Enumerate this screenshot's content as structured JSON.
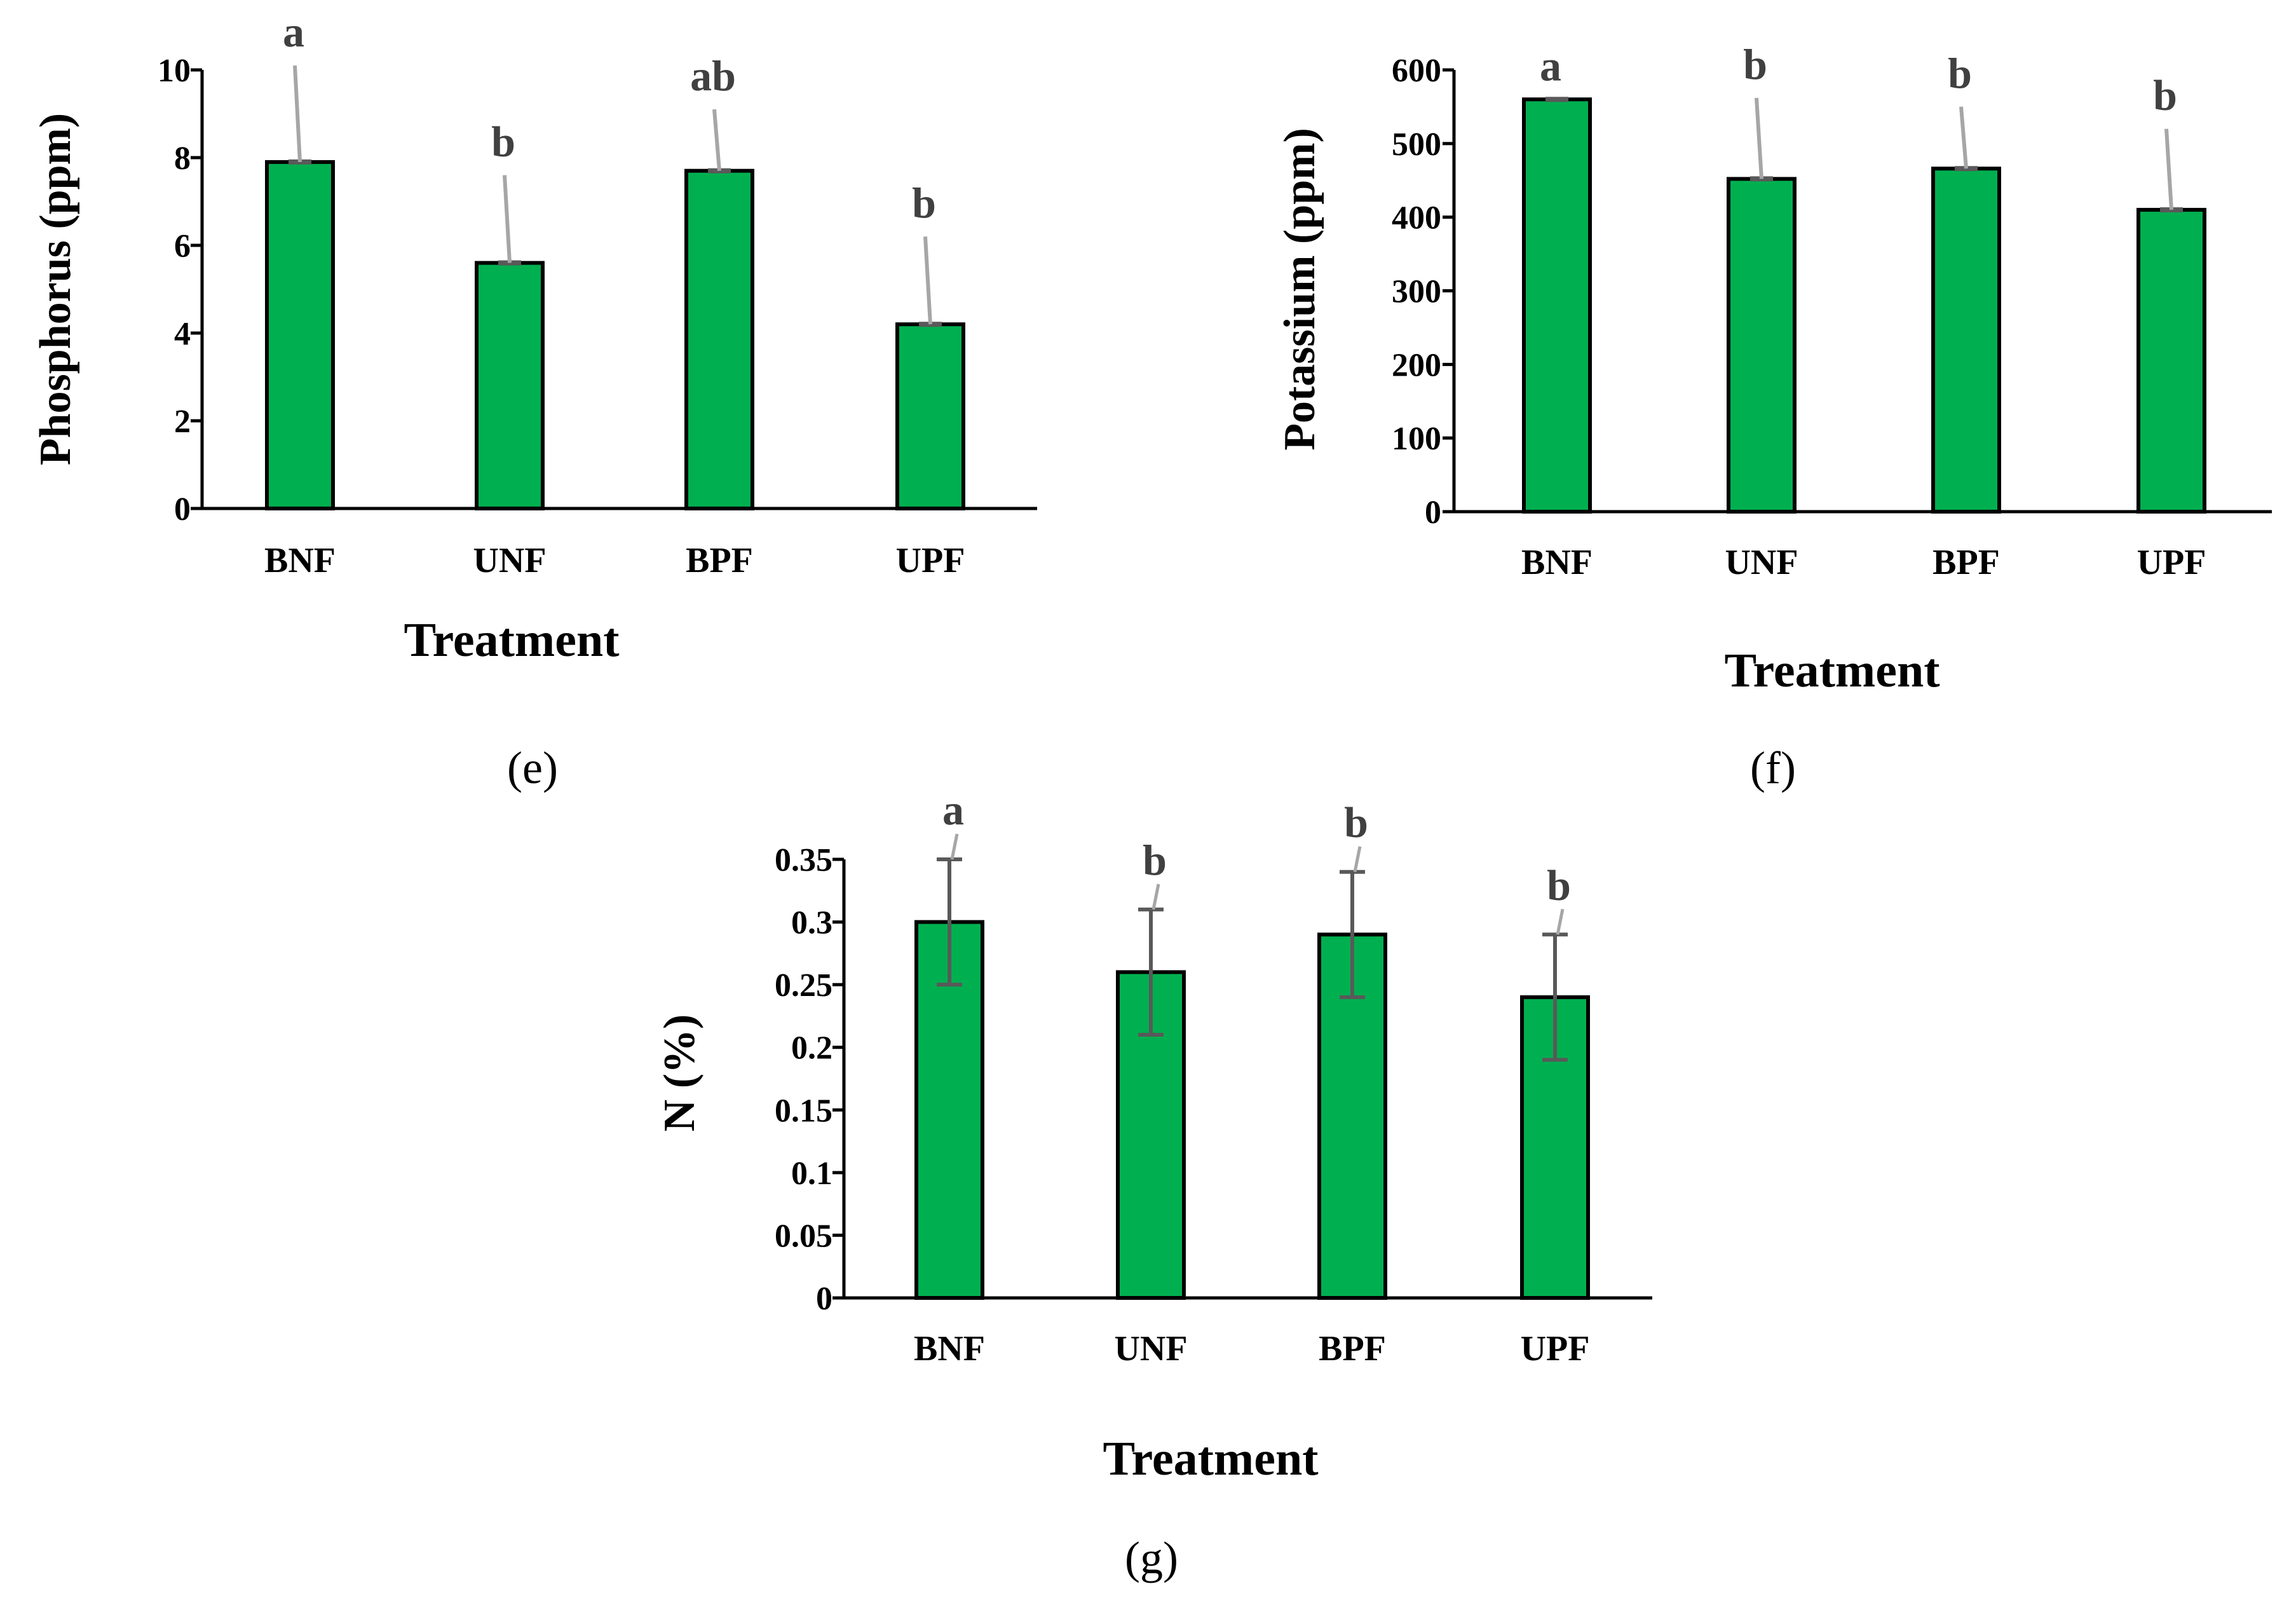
{
  "colors": {
    "bar_fill": "#00b050",
    "error_bar_light": "#a6a6a6",
    "error_bar_dark": "#595959",
    "letter": "#404040"
  },
  "chart_data": [
    {
      "type": "bar",
      "panel_label": "(e)",
      "categories": [
        "BNF",
        "UNF",
        "BPF",
        "UPF"
      ],
      "values": [
        7.9,
        5.6,
        7.7,
        4.2
      ],
      "errors": [
        2.2,
        2.0,
        1.4,
        2.0
      ],
      "letters": [
        "a",
        "b",
        "ab",
        "b"
      ],
      "ylabel": "Phosphorus (ppm)",
      "xlabel": "Treatment",
      "ylim": [
        0,
        10
      ],
      "yticks": [
        "0",
        "2",
        "4",
        "6",
        "8",
        "10"
      ],
      "ytick_values": [
        0,
        2,
        4,
        6,
        8,
        10
      ]
    },
    {
      "type": "bar",
      "panel_label": "(f)",
      "categories": [
        "BNF",
        "UNF",
        "BPF",
        "UPF"
      ],
      "values": [
        560,
        452,
        466,
        410
      ],
      "errors": [
        0,
        110,
        84,
        110
      ],
      "letters": [
        "a",
        "b",
        "b",
        "b"
      ],
      "ylabel": "Potassium (ppm)",
      "xlabel": "Treatment",
      "ylim": [
        0,
        600
      ],
      "yticks": [
        "0",
        "100",
        "200",
        "300",
        "400",
        "500",
        "600"
      ],
      "ytick_values": [
        0,
        100,
        200,
        300,
        400,
        500,
        600
      ]
    },
    {
      "type": "bar",
      "panel_label": "(g)",
      "categories": [
        "BNF",
        "UNF",
        "BPF",
        "UPF"
      ],
      "values": [
        0.3,
        0.26,
        0.29,
        0.24
      ],
      "errors": [
        0.05,
        0.05,
        0.05,
        0.05
      ],
      "letters": [
        "a",
        "b",
        "b",
        "b"
      ],
      "ylabel": "N (%)",
      "xlabel": "Treatment",
      "ylim": [
        0,
        0.35
      ],
      "yticks": [
        "0",
        "0.05",
        "0.1",
        "0.15",
        "0.2",
        "0.25",
        "0.3",
        "0.35"
      ],
      "ytick_values": [
        0,
        0.05,
        0.1,
        0.15,
        0.2,
        0.25,
        0.3,
        0.35
      ]
    }
  ]
}
